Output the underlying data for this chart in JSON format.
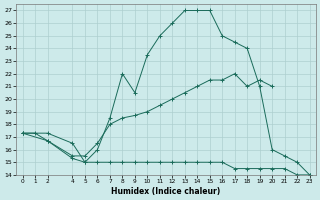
{
  "bg_color": "#cdeaea",
  "grid_color": "#aecfcf",
  "line_color": "#1a6b5a",
  "xlabel": "Humidex (Indice chaleur)",
  "xlim": [
    -0.5,
    23.5
  ],
  "ylim": [
    14,
    27.5
  ],
  "yticks": [
    14,
    15,
    16,
    17,
    18,
    19,
    20,
    21,
    22,
    23,
    24,
    25,
    26,
    27
  ],
  "xticks": [
    0,
    1,
    2,
    4,
    5,
    6,
    7,
    8,
    9,
    10,
    11,
    12,
    13,
    14,
    15,
    16,
    17,
    18,
    19,
    20,
    21,
    22,
    23
  ],
  "series": [
    {
      "x": [
        0,
        1,
        2,
        4,
        5,
        6,
        7,
        8,
        9,
        10,
        11,
        12,
        13,
        14,
        15,
        16,
        17,
        18,
        19,
        20,
        21,
        22,
        23
      ],
      "y": [
        17.3,
        17.3,
        16.7,
        15.3,
        15.0,
        15.0,
        15.0,
        15.0,
        15.0,
        15.0,
        15.0,
        15.0,
        15.0,
        15.0,
        15.0,
        15.0,
        14.5,
        14.5,
        14.5,
        14.5,
        14.5,
        14.0,
        14.0
      ],
      "marker": "+"
    },
    {
      "x": [
        0,
        2,
        4,
        5,
        6,
        7,
        8,
        9,
        10,
        11,
        12,
        13,
        14,
        15,
        16,
        17,
        18,
        19,
        20
      ],
      "y": [
        17.3,
        16.7,
        15.5,
        15.5,
        16.5,
        18.0,
        18.5,
        18.7,
        19.0,
        19.5,
        20.0,
        20.5,
        21.0,
        21.5,
        21.5,
        22.0,
        21.0,
        21.5,
        21.0
      ],
      "marker": "+"
    },
    {
      "x": [
        0,
        2,
        4,
        5,
        6,
        7,
        8,
        9,
        10,
        11,
        12,
        13,
        14,
        15,
        16,
        17,
        18,
        19,
        20,
        21,
        22,
        23
      ],
      "y": [
        17.3,
        17.3,
        16.5,
        15.0,
        16.0,
        18.5,
        22.0,
        20.5,
        23.5,
        25.0,
        26.0,
        27.0,
        27.0,
        27.0,
        25.0,
        24.5,
        24.0,
        21.0,
        16.0,
        15.5,
        15.0,
        14.0
      ],
      "marker": "+"
    }
  ]
}
